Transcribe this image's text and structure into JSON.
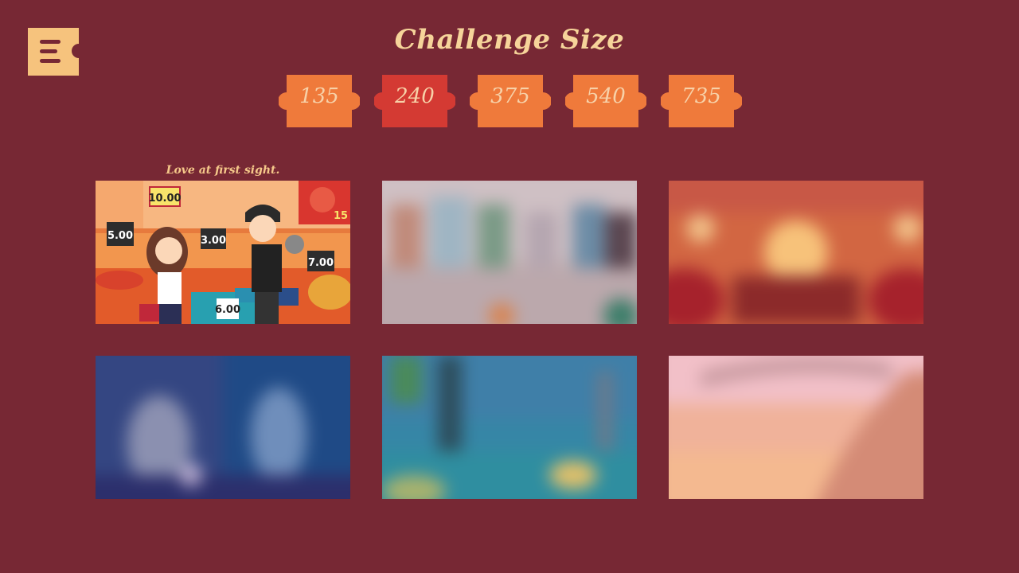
{
  "title": "Challenge Size",
  "sizes": [
    {
      "label": "135",
      "selected": false
    },
    {
      "label": "240",
      "selected": true
    },
    {
      "label": "375",
      "selected": false
    },
    {
      "label": "540",
      "selected": false
    },
    {
      "label": "735",
      "selected": false
    }
  ],
  "colors": {
    "background": "#772834",
    "piece": "#ef7a3b",
    "piece_selected": "#d43a33",
    "menu_button": "#f6c37d",
    "title": "#f6d49a"
  },
  "gallery": {
    "caption": "Love at first sight.",
    "first_image_signs": [
      "10.00",
      "5.00",
      "3.00",
      "7.00",
      "6.00",
      "15"
    ],
    "items": [
      {
        "state": "unlocked"
      },
      {
        "state": "locked"
      },
      {
        "state": "locked"
      },
      {
        "state": "locked"
      },
      {
        "state": "locked"
      },
      {
        "state": "locked"
      }
    ]
  }
}
